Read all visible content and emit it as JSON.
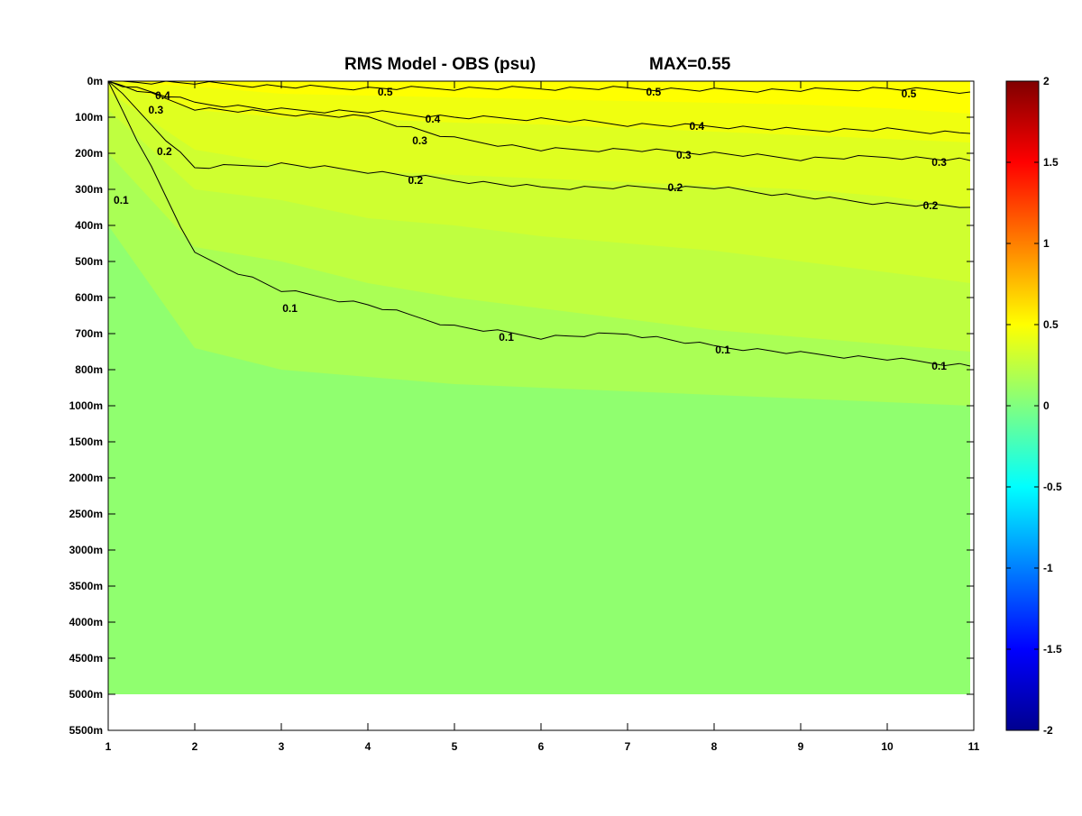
{
  "chart_data": {
    "type": "heatmap",
    "title": "RMS Model - OBS (psu)",
    "max_label": "MAX=0.55",
    "x_ticks": [
      "1",
      "2",
      "3",
      "4",
      "5",
      "6",
      "7",
      "8",
      "9",
      "10",
      "11"
    ],
    "xlim": [
      1,
      11
    ],
    "y_ticks": [
      "0m",
      "100m",
      "200m",
      "300m",
      "400m",
      "500m",
      "600m",
      "700m",
      "800m",
      "1000m",
      "1500m",
      "2000m",
      "2500m",
      "3000m",
      "3500m",
      "4000m",
      "4500m",
      "5000m",
      "5500m"
    ],
    "y_data_bottom": "5000m",
    "colorbar": {
      "range": [
        -2,
        2
      ],
      "ticks": [
        "2",
        "1.5",
        "1",
        "0.5",
        "0",
        "-0.5",
        "-1",
        "-1.5",
        "-2"
      ],
      "colormap": "jet"
    },
    "bands": [
      {
        "min": 0.5,
        "color": "#ffff00",
        "depths": [
          0,
          0.15,
          0.35,
          0.4,
          0.45,
          0.5,
          0.55,
          0.6,
          0.65,
          0.75,
          0.9
        ]
      },
      {
        "min": 0.4,
        "color": "#f0ff0f",
        "depths": [
          0,
          0.8,
          1.0,
          1.05,
          1.15,
          1.2,
          1.3,
          1.4,
          1.5,
          1.6,
          1.7
        ]
      },
      {
        "min": 0.3,
        "color": "#dfff20",
        "depths": [
          0.3,
          1.9,
          2.3,
          2.5,
          2.6,
          2.7,
          2.8,
          2.9,
          3.0,
          3.2,
          3.5
        ]
      },
      {
        "min": 0.2,
        "color": "#cfff30",
        "depths": [
          0.8,
          3.0,
          3.3,
          3.8,
          4.0,
          4.3,
          4.5,
          4.7,
          5.0,
          5.3,
          5.6
        ]
      },
      {
        "min": 0.1,
        "color": "#bfff40",
        "depths": [
          2.0,
          4.6,
          5.0,
          5.6,
          6.0,
          6.3,
          6.6,
          6.9,
          7.1,
          7.3,
          7.5
        ]
      },
      {
        "min": 0.05,
        "color": "#aaff55",
        "depths": [
          4.0,
          7.4,
          8.0,
          8.2,
          8.4,
          8.5,
          8.6,
          8.7,
          8.8,
          8.9,
          9.0
        ]
      },
      {
        "min": 0.0,
        "color": "#90ff6f",
        "depths": [
          17,
          17,
          17,
          17,
          17,
          17,
          17,
          17,
          17,
          17,
          17
        ]
      }
    ],
    "contours": [
      {
        "level": "0.5",
        "depths": [
          0.0,
          0.05,
          0.15,
          0.2,
          0.2,
          0.2,
          0.2,
          0.25,
          0.25,
          0.2,
          0.3
        ],
        "labels": [
          [
            4.2,
            0.3
          ],
          [
            7.3,
            0.3
          ],
          [
            10.25,
            0.35
          ]
        ]
      },
      {
        "level": "0.4",
        "depths": [
          0.0,
          0.6,
          0.8,
          0.85,
          1.0,
          1.05,
          1.2,
          1.25,
          1.35,
          1.35,
          1.45
        ],
        "labels": [
          [
            1.63,
            0.4
          ],
          [
            4.75,
            1.05
          ],
          [
            7.8,
            1.25
          ]
        ]
      },
      {
        "level": "0.3",
        "depths": [
          0.0,
          0.75,
          0.9,
          1.0,
          1.6,
          1.9,
          1.9,
          2.0,
          2.15,
          2.1,
          2.2
        ],
        "labels": [
          [
            1.55,
            0.8
          ],
          [
            4.6,
            1.65
          ],
          [
            7.65,
            2.05
          ],
          [
            10.6,
            2.25
          ]
        ]
      },
      {
        "level": "0.2",
        "depths": [
          0.0,
          2.4,
          2.3,
          2.5,
          2.75,
          2.95,
          2.95,
          2.95,
          3.2,
          3.4,
          3.5
        ],
        "labels": [
          [
            1.65,
            1.95
          ],
          [
            4.55,
            2.75
          ],
          [
            7.55,
            2.95
          ],
          [
            10.5,
            3.45
          ]
        ]
      },
      {
        "level": "0.1",
        "depths": [
          0.0,
          4.8,
          5.8,
          6.2,
          6.8,
          7.1,
          7.0,
          7.35,
          7.55,
          7.7,
          7.9
        ],
        "labels": [
          [
            1.15,
            3.3
          ],
          [
            3.1,
            6.3
          ],
          [
            5.6,
            7.1
          ],
          [
            8.1,
            7.45
          ],
          [
            10.6,
            7.9
          ]
        ]
      }
    ]
  }
}
